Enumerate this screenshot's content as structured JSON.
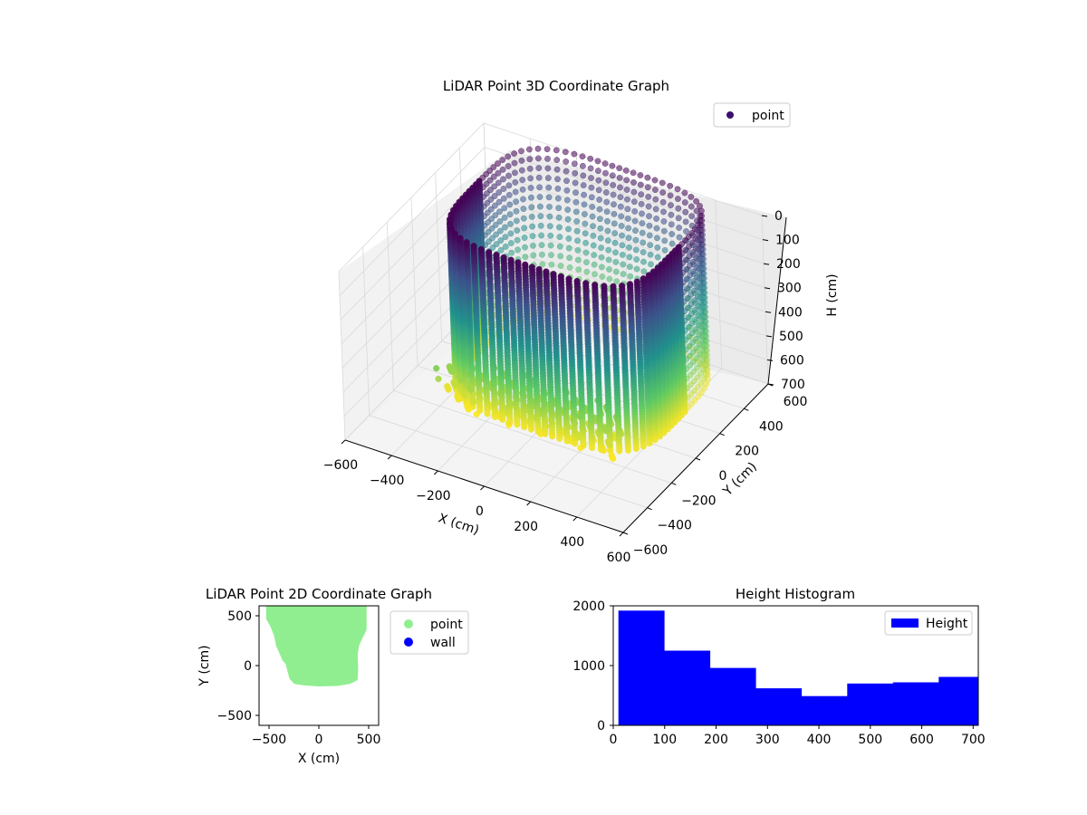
{
  "chart_data": [
    {
      "type": "scatter",
      "projection": "3d",
      "title": "LiDAR Point 3D Coordinate Graph",
      "xlabel": "X (cm)",
      "ylabel": "Y (cm)",
      "zlabel": "H (cm)",
      "xlim": [
        -600,
        600
      ],
      "ylim": [
        -600,
        600
      ],
      "zlim": [
        700,
        0
      ],
      "x_ticks": [
        "−600",
        "−400",
        "−200",
        "0",
        "200",
        "400",
        "600"
      ],
      "y_ticks": [
        "−600",
        "−400",
        "−200",
        "0",
        "200",
        "400",
        "600"
      ],
      "z_ticks": [
        "0",
        "100",
        "200",
        "300",
        "400",
        "500",
        "600",
        "700"
      ],
      "grid": true,
      "legend": {
        "position": "top-right",
        "entries": [
          "point"
        ]
      },
      "series": [
        {
          "name": "point",
          "colormap": "viridis",
          "color_by": "height",
          "shape": "open-top enclosure of vertical point columns",
          "x_range": [
            -470,
            470
          ],
          "y_range": [
            -190,
            600
          ],
          "h_range": [
            0,
            700
          ]
        }
      ],
      "colors": {
        "legend_marker": "#3b0f70"
      }
    },
    {
      "type": "scatter",
      "title": "LiDAR Point 2D Coordinate Graph",
      "xlabel": "X (cm)",
      "ylabel": "Y (cm)",
      "xlim": [
        -600,
        600
      ],
      "ylim": [
        -600,
        600
      ],
      "x_ticks": [
        "−500",
        "0",
        "500"
      ],
      "y_ticks": [
        "−500",
        "0",
        "500"
      ],
      "legend": {
        "position": "outside-right",
        "entries": [
          "point",
          "wall"
        ]
      },
      "series": [
        {
          "name": "point",
          "color": "#90ee90",
          "footprint": [
            [
              -520,
              600
            ],
            [
              -520,
              470
            ],
            [
              -480,
              400
            ],
            [
              -440,
              300
            ],
            [
              -420,
              200
            ],
            [
              -380,
              110
            ],
            [
              -360,
              60
            ],
            [
              -325,
              20
            ],
            [
              -310,
              -40
            ],
            [
              -285,
              -130
            ],
            [
              -240,
              -175
            ],
            [
              -150,
              -190
            ],
            [
              0,
              -200
            ],
            [
              180,
              -195
            ],
            [
              310,
              -175
            ],
            [
              380,
              -140
            ],
            [
              385,
              -40
            ],
            [
              380,
              110
            ],
            [
              395,
              200
            ],
            [
              420,
              260
            ],
            [
              470,
              360
            ],
            [
              470,
              600
            ]
          ]
        },
        {
          "name": "wall",
          "color": "#0000ff",
          "points": []
        }
      ]
    },
    {
      "type": "bar",
      "subtype": "histogram",
      "title": "Height Histogram",
      "xlabel": "",
      "ylabel": "",
      "xlim": [
        0,
        710
      ],
      "ylim": [
        0,
        2000
      ],
      "x_ticks": [
        "0",
        "100",
        "200",
        "300",
        "400",
        "500",
        "600",
        "700"
      ],
      "y_ticks": [
        "0",
        "1000",
        "2000"
      ],
      "bin_edges": [
        10,
        99,
        188,
        277,
        366,
        455,
        544,
        633,
        722
      ],
      "values": [
        1920,
        1250,
        960,
        620,
        490,
        700,
        720,
        810
      ],
      "color": "#0000ff",
      "legend": {
        "position": "top-right",
        "entries": [
          "Height"
        ]
      },
      "series": [
        {
          "name": "Height",
          "values": [
            1920,
            1250,
            960,
            620,
            490,
            700,
            720,
            810
          ]
        }
      ]
    }
  ]
}
